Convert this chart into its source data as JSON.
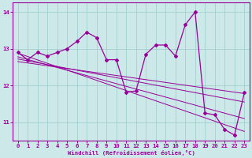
{
  "xlabel": "Windchill (Refroidissement éolien,°C)",
  "hours": [
    0,
    1,
    2,
    3,
    4,
    5,
    6,
    7,
    8,
    9,
    10,
    11,
    12,
    13,
    14,
    15,
    16,
    17,
    18,
    19,
    20,
    21,
    22,
    23
  ],
  "windchill": [
    12.9,
    12.7,
    12.9,
    12.8,
    12.9,
    13.0,
    13.2,
    13.45,
    13.3,
    12.7,
    12.7,
    11.82,
    11.85,
    12.85,
    13.1,
    13.1,
    12.8,
    13.65,
    14.0,
    11.25,
    11.2,
    10.8,
    10.65,
    11.8
  ],
  "line_color": "#990099",
  "bg_color": "#cce8e8",
  "ylim": [
    10.5,
    14.25
  ],
  "xlim": [
    -0.5,
    23.5
  ],
  "yticks": [
    11,
    12,
    13,
    14
  ],
  "xticks": [
    0,
    1,
    2,
    3,
    4,
    5,
    6,
    7,
    8,
    9,
    10,
    11,
    12,
    13,
    14,
    15,
    16,
    17,
    18,
    19,
    20,
    21,
    22,
    23
  ],
  "grid_color": "#99cccc",
  "straight_lines": [
    [
      [
        0,
        23
      ],
      [
        12.88,
        10.75
      ]
    ],
    [
      [
        0,
        23
      ],
      [
        12.78,
        11.1
      ]
    ],
    [
      [
        0,
        23
      ],
      [
        12.72,
        11.55
      ]
    ],
    [
      [
        0,
        23
      ],
      [
        12.65,
        11.78
      ]
    ]
  ]
}
